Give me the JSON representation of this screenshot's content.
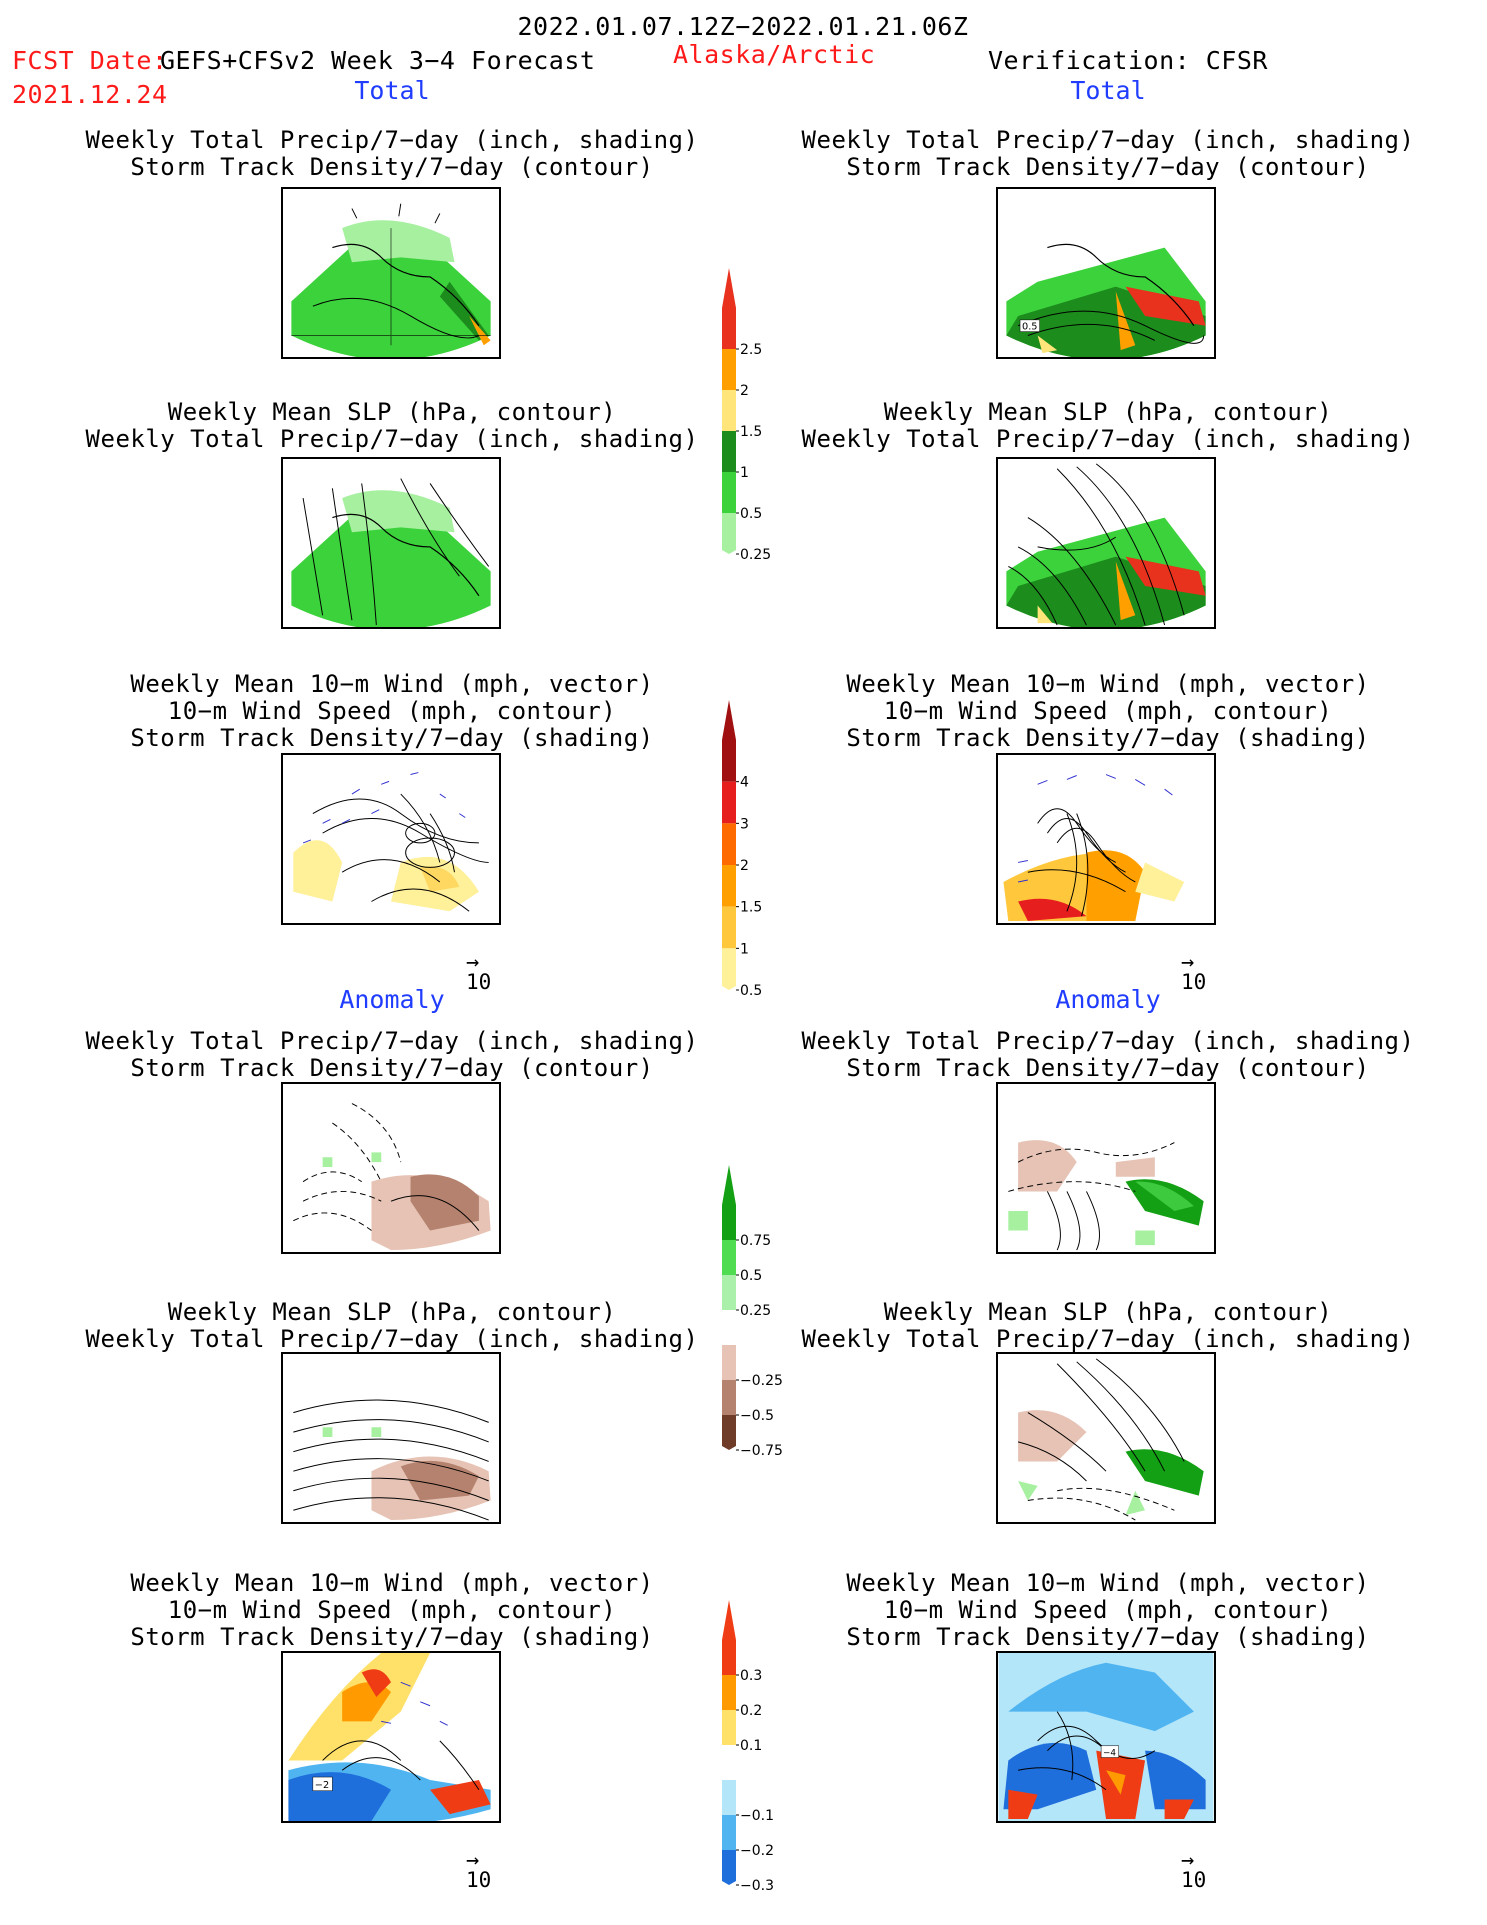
{
  "header": {
    "date_range": "2022.01.07.12Z−2022.01.21.06Z",
    "fcst_prefix": "FCST Date:",
    "model": "GEFS+CFSv2 Week 3−4 Forecast",
    "region": "Alaska/Arctic",
    "verification": "Verification: CFSR",
    "fcst_date": "2021.12.24"
  },
  "sections": {
    "total_left": "Total",
    "total_right": "Total",
    "anomaly_left": "Anomaly",
    "anomaly_right": "Anomaly"
  },
  "titles": {
    "precip_track": [
      "Weekly Total Precip/7−day (inch, shading)",
      "Storm Track Density/7−day (contour)"
    ],
    "slp_precip": [
      "Weekly Mean SLP (hPa, contour)",
      "Weekly Total Precip/7−day (inch, shading)"
    ],
    "wind_track": [
      "Weekly Mean 10−m Wind (mph, vector)",
      "10−m Wind Speed (mph, contour)",
      "Storm Track Density/7−day (shading)"
    ]
  },
  "vector_ref": "10",
  "panel_labels": {
    "p2_box": "0.5",
    "a6_box": "−2",
    "a6r_box": "−4"
  },
  "colorbars": [
    {
      "name": "total-precip",
      "ticks": [
        "2.5",
        "2",
        "1.5",
        "1",
        "0.5",
        "0.25"
      ],
      "colors": [
        "#e8321e",
        "#ffa000",
        "#ffe57a",
        "#1c8c1c",
        "#3cd23c",
        "#a6f0a0"
      ]
    },
    {
      "name": "total-storm-track",
      "ticks": [
        "4",
        "3",
        "2",
        "1.5",
        "1",
        "0.5"
      ],
      "colors": [
        "#a01010",
        "#e61e1e",
        "#ff6a00",
        "#ffa000",
        "#ffc83c",
        "#fff09a"
      ]
    },
    {
      "name": "anomaly-precip",
      "ticks": [
        "0.75",
        "0.5",
        "0.25",
        "−0.25",
        "−0.5",
        "−0.75"
      ],
      "colors": [
        "#14a014",
        "#50dc50",
        "#aaf0aa",
        "#ffffff",
        "#e6c3b4",
        "#b4826e",
        "#6e3c28"
      ]
    },
    {
      "name": "anomaly-storm-track",
      "ticks": [
        "0.3",
        "0.2",
        "0.1",
        "−0.1",
        "−0.2",
        "−0.3"
      ],
      "colors": [
        "#f03c14",
        "#ff9b00",
        "#ffe169",
        "#ffffff",
        "#b4e6fa",
        "#50b4f0",
        "#1e6edc"
      ]
    }
  ]
}
